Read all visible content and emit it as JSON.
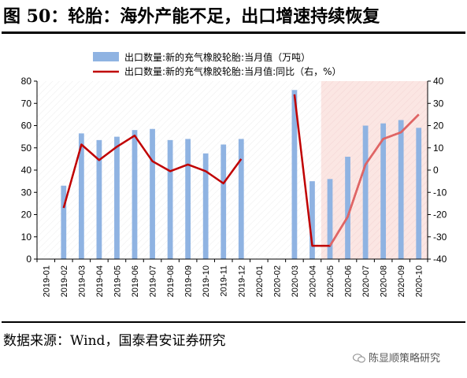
{
  "title": "图 50：轮胎：海外产能不足，出口增速持续恢复",
  "source": "数据来源：Wind，国泰君安证券研究",
  "watermark": "陈显顺策略研究",
  "chart_data": {
    "type": "bar+line",
    "categories": [
      "2019-01",
      "2019-02",
      "2019-03",
      "2019-04",
      "2019-05",
      "2019-06",
      "2019-07",
      "2019-08",
      "2019-09",
      "2019-10",
      "2019-11",
      "2019-12",
      "2020-01",
      "2020-02",
      "2020-03",
      "2020-04",
      "2020-05",
      "2020-06",
      "2020-07",
      "2020-08",
      "2020-09",
      "2020-10"
    ],
    "series": [
      {
        "name": "出口数量:新的充气橡胶轮胎:当月值（万吨）",
        "kind": "bar",
        "axis": "left",
        "color": "#8fb3e2",
        "values": [
          null,
          33,
          56.5,
          53.5,
          55,
          58,
          58.5,
          53.5,
          54,
          47.5,
          51.5,
          54,
          null,
          null,
          76,
          35,
          36,
          46,
          60,
          61,
          62.5,
          59
        ]
      },
      {
        "name": "出口数量:新的充气橡胶轮胎:当月值:同比（右，%）",
        "kind": "line",
        "axis": "right",
        "color": "#c00000",
        "values": [
          null,
          -17,
          11.5,
          4.5,
          10.5,
          15.5,
          4,
          -0.5,
          2.5,
          -0.5,
          -6,
          5,
          null,
          null,
          34,
          -34,
          -34,
          -21,
          2.5,
          14,
          17,
          25
        ]
      }
    ],
    "left_axis": {
      "min": 0,
      "max": 80,
      "step": 10,
      "ticks": [
        "0",
        "10",
        "20",
        "30",
        "40",
        "50",
        "60",
        "70",
        "80"
      ]
    },
    "right_axis": {
      "min": -40,
      "max": 40,
      "step": 10,
      "ticks": [
        "-40",
        "-30",
        "-20",
        "-10",
        "0",
        "10",
        "20",
        "30",
        "40"
      ]
    },
    "highlight_range": [
      "2020-05",
      "2020-10"
    ],
    "highlight_color": "#fbe6e3",
    "hatch_color": "#f0c8c8",
    "legend_position": "top"
  }
}
